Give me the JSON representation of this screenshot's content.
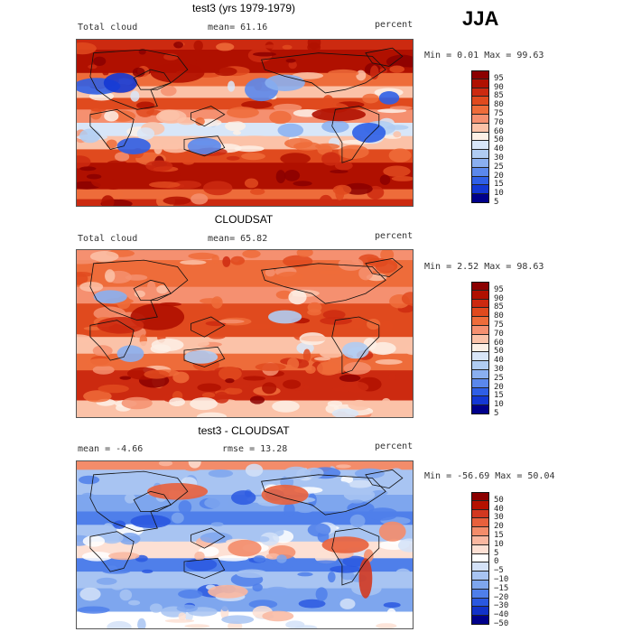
{
  "season": "JJA",
  "panels": [
    {
      "title": "test3 (yrs 1979-1979)",
      "left_label": "Total cloud",
      "mid_label": "mean=  61.16",
      "right_label": "percent",
      "minmax": "Min =   0.01 Max =  99.63",
      "kind": "abs",
      "colorbar_labels": [
        "95",
        "90",
        "85",
        "80",
        "75",
        "70",
        "60",
        "50",
        "40",
        "30",
        "25",
        "20",
        "15",
        "10",
        "5"
      ]
    },
    {
      "title": "CLOUDSAT",
      "left_label": "Total cloud",
      "mid_label": "mean=  65.82",
      "right_label": "percent",
      "minmax": "Min =   2.52 Max =  98.63",
      "kind": "abs",
      "colorbar_labels": [
        "95",
        "90",
        "85",
        "80",
        "75",
        "70",
        "60",
        "50",
        "40",
        "30",
        "25",
        "20",
        "15",
        "10",
        "5"
      ]
    },
    {
      "title": "test3 - CLOUDSAT",
      "left_label": "mean =  -4.66",
      "mid_label": "rmse =  13.28",
      "right_label": "percent",
      "minmax": "Min = -56.69 Max =  50.04",
      "kind": "diff",
      "colorbar_labels": [
        "50",
        "40",
        "30",
        "20",
        "15",
        "10",
        "5",
        "0",
        "−5",
        "−10",
        "−15",
        "−20",
        "−30",
        "−40",
        "−50"
      ]
    }
  ],
  "colors": {
    "abs_scale": [
      "#8b0000",
      "#b01000",
      "#cc2a10",
      "#e04a1e",
      "#ee6c3a",
      "#f59070",
      "#fbc2a8",
      "#fdf0e6",
      "#d8e6f8",
      "#b0ccf2",
      "#8aaff0",
      "#5b88ec",
      "#2f5fe6",
      "#1438d4",
      "#00008b"
    ],
    "diff_scale": [
      "#8b0000",
      "#b51200",
      "#d23820",
      "#e8603c",
      "#f38c6a",
      "#f9b7a0",
      "#fde0d4",
      "#ffffff",
      "#d4e2f8",
      "#a8c4f2",
      "#7ea6ee",
      "#4f7fea",
      "#2a58e0",
      "#1232c8",
      "#00008b"
    ]
  }
}
